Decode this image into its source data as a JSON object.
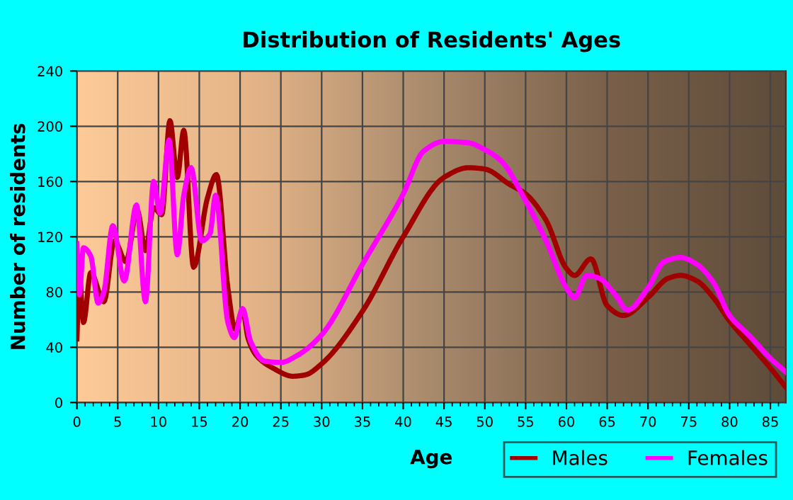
{
  "chart_data": {
    "type": "line",
    "title": "Distribution of Residents' Ages",
    "xlabel": "Age",
    "ylabel": "Number of residents",
    "xlim": [
      0,
      86.9
    ],
    "xticks": [
      0,
      5,
      10,
      15,
      20,
      25,
      30,
      35,
      40,
      45,
      50,
      55,
      60,
      65,
      70,
      75,
      80,
      85
    ],
    "ylim": [
      0,
      240
    ],
    "yticks": [
      0,
      40,
      80,
      120,
      160,
      200,
      240
    ],
    "grid": true,
    "legend": "bottom right",
    "marker": "none",
    "line_style": "solid",
    "series": [
      {
        "name": "Males",
        "color": "#a00000",
        "x": [
          0,
          0.3,
          0.8,
          1.7,
          3.3,
          4.6,
          6.0,
          7.4,
          8.4,
          9.4,
          10.4,
          11.4,
          12.3,
          13.1,
          14.3,
          16.0,
          17.1,
          18.5,
          19.4,
          20.3,
          21,
          22,
          24,
          26.5,
          28,
          30,
          35,
          40,
          45,
          48,
          50,
          53,
          55,
          57.5,
          60,
          61,
          63,
          65,
          67,
          70,
          72.5,
          74,
          76,
          78,
          80,
          82.5,
          85,
          86.9
        ],
        "values": [
          46,
          93,
          58,
          94,
          73,
          117,
          102,
          139,
          110,
          141,
          136,
          204,
          163,
          197,
          98,
          148,
          165,
          83,
          53,
          67,
          46,
          34,
          25,
          19,
          20,
          28,
          66,
          120,
          163,
          170,
          169,
          158,
          151,
          132,
          97,
          92,
          104,
          70,
          63,
          76,
          90,
          92,
          88,
          76,
          59,
          42,
          25,
          11
        ]
      },
      {
        "name": "Females",
        "color": "#ff00ff",
        "x": [
          0,
          0.3,
          0.8,
          1.7,
          2.6,
          3.3,
          4.4,
          5.8,
          7.3,
          8.4,
          9.4,
          10.2,
          11.3,
          12.3,
          13.1,
          14,
          15.3,
          16.3,
          17,
          18.5,
          19.3,
          20.3,
          21.3,
          23,
          25,
          27,
          30,
          35,
          40,
          42.5,
          45,
          48,
          50,
          52,
          55,
          57.5,
          60,
          61,
          62.5,
          64,
          66,
          67.5,
          70,
          72,
          74,
          76,
          78,
          80,
          82.5,
          85,
          86.9
        ],
        "values": [
          115,
          78,
          112,
          106,
          72,
          80,
          128,
          88,
          143,
          73,
          160,
          137,
          190,
          107,
          150,
          170,
          117,
          122,
          150,
          58,
          47,
          68,
          44,
          30,
          29,
          34,
          49,
          100,
          151,
          182,
          189,
          188,
          183,
          175,
          146,
          117,
          83,
          76,
          92,
          90,
          78,
          67,
          83,
          102,
          105,
          100,
          87,
          63,
          48,
          32,
          22
        ]
      }
    ]
  }
}
